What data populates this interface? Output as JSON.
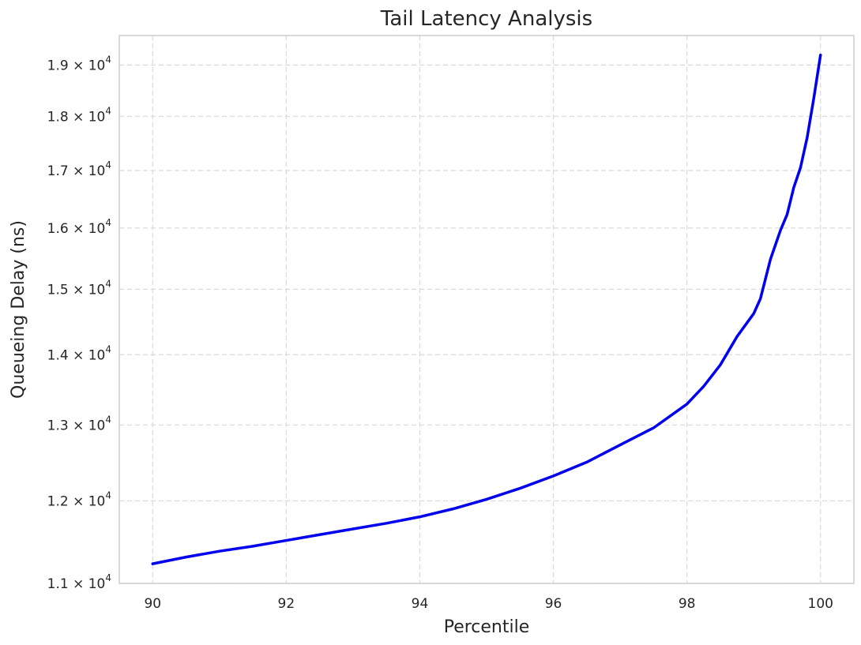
{
  "chart_data": {
    "type": "line",
    "title": "Tail Latency Analysis",
    "xlabel": "Percentile",
    "ylabel": "Queueing Delay (ns)",
    "yscale": "log",
    "xlim": [
      89.5,
      100.5
    ],
    "ylim": [
      11000,
      19600
    ],
    "grid": true,
    "x_ticks": [
      90,
      92,
      94,
      96,
      98,
      100
    ],
    "y_ticks": [
      {
        "value": 11000,
        "mantissa": "1.1",
        "base": "× 10",
        "exp": "4"
      },
      {
        "value": 12000,
        "mantissa": "1.2",
        "base": "× 10",
        "exp": "4"
      },
      {
        "value": 13000,
        "mantissa": "1.3",
        "base": "× 10",
        "exp": "4"
      },
      {
        "value": 14000,
        "mantissa": "1.4",
        "base": "× 10",
        "exp": "4"
      },
      {
        "value": 15000,
        "mantissa": "1.5",
        "base": "× 10",
        "exp": "4"
      },
      {
        "value": 16000,
        "mantissa": "1.6",
        "base": "× 10",
        "exp": "4"
      },
      {
        "value": 17000,
        "mantissa": "1.7",
        "base": "× 10",
        "exp": "4"
      },
      {
        "value": 18000,
        "mantissa": "1.8",
        "base": "× 10",
        "exp": "4"
      },
      {
        "value": 19000,
        "mantissa": "1.9",
        "base": "× 10",
        "exp": "4"
      }
    ],
    "series": [
      {
        "color": "#0000ee",
        "x": [
          90,
          90.5,
          91,
          91.5,
          92,
          92.5,
          93,
          93.5,
          94,
          94.5,
          95,
          95.5,
          96,
          96.5,
          97,
          97.5,
          98,
          98.25,
          98.5,
          98.75,
          99,
          99.1,
          99.25,
          99.4,
          99.5,
          99.6,
          99.7,
          99.8,
          99.9,
          100
        ],
        "y": [
          11230,
          11310,
          11380,
          11440,
          11510,
          11580,
          11650,
          11720,
          11800,
          11900,
          12020,
          12160,
          12320,
          12500,
          12730,
          12960,
          13290,
          13540,
          13850,
          14270,
          14620,
          14850,
          15480,
          15960,
          16230,
          16700,
          17050,
          17600,
          18350,
          19200
        ]
      }
    ]
  }
}
